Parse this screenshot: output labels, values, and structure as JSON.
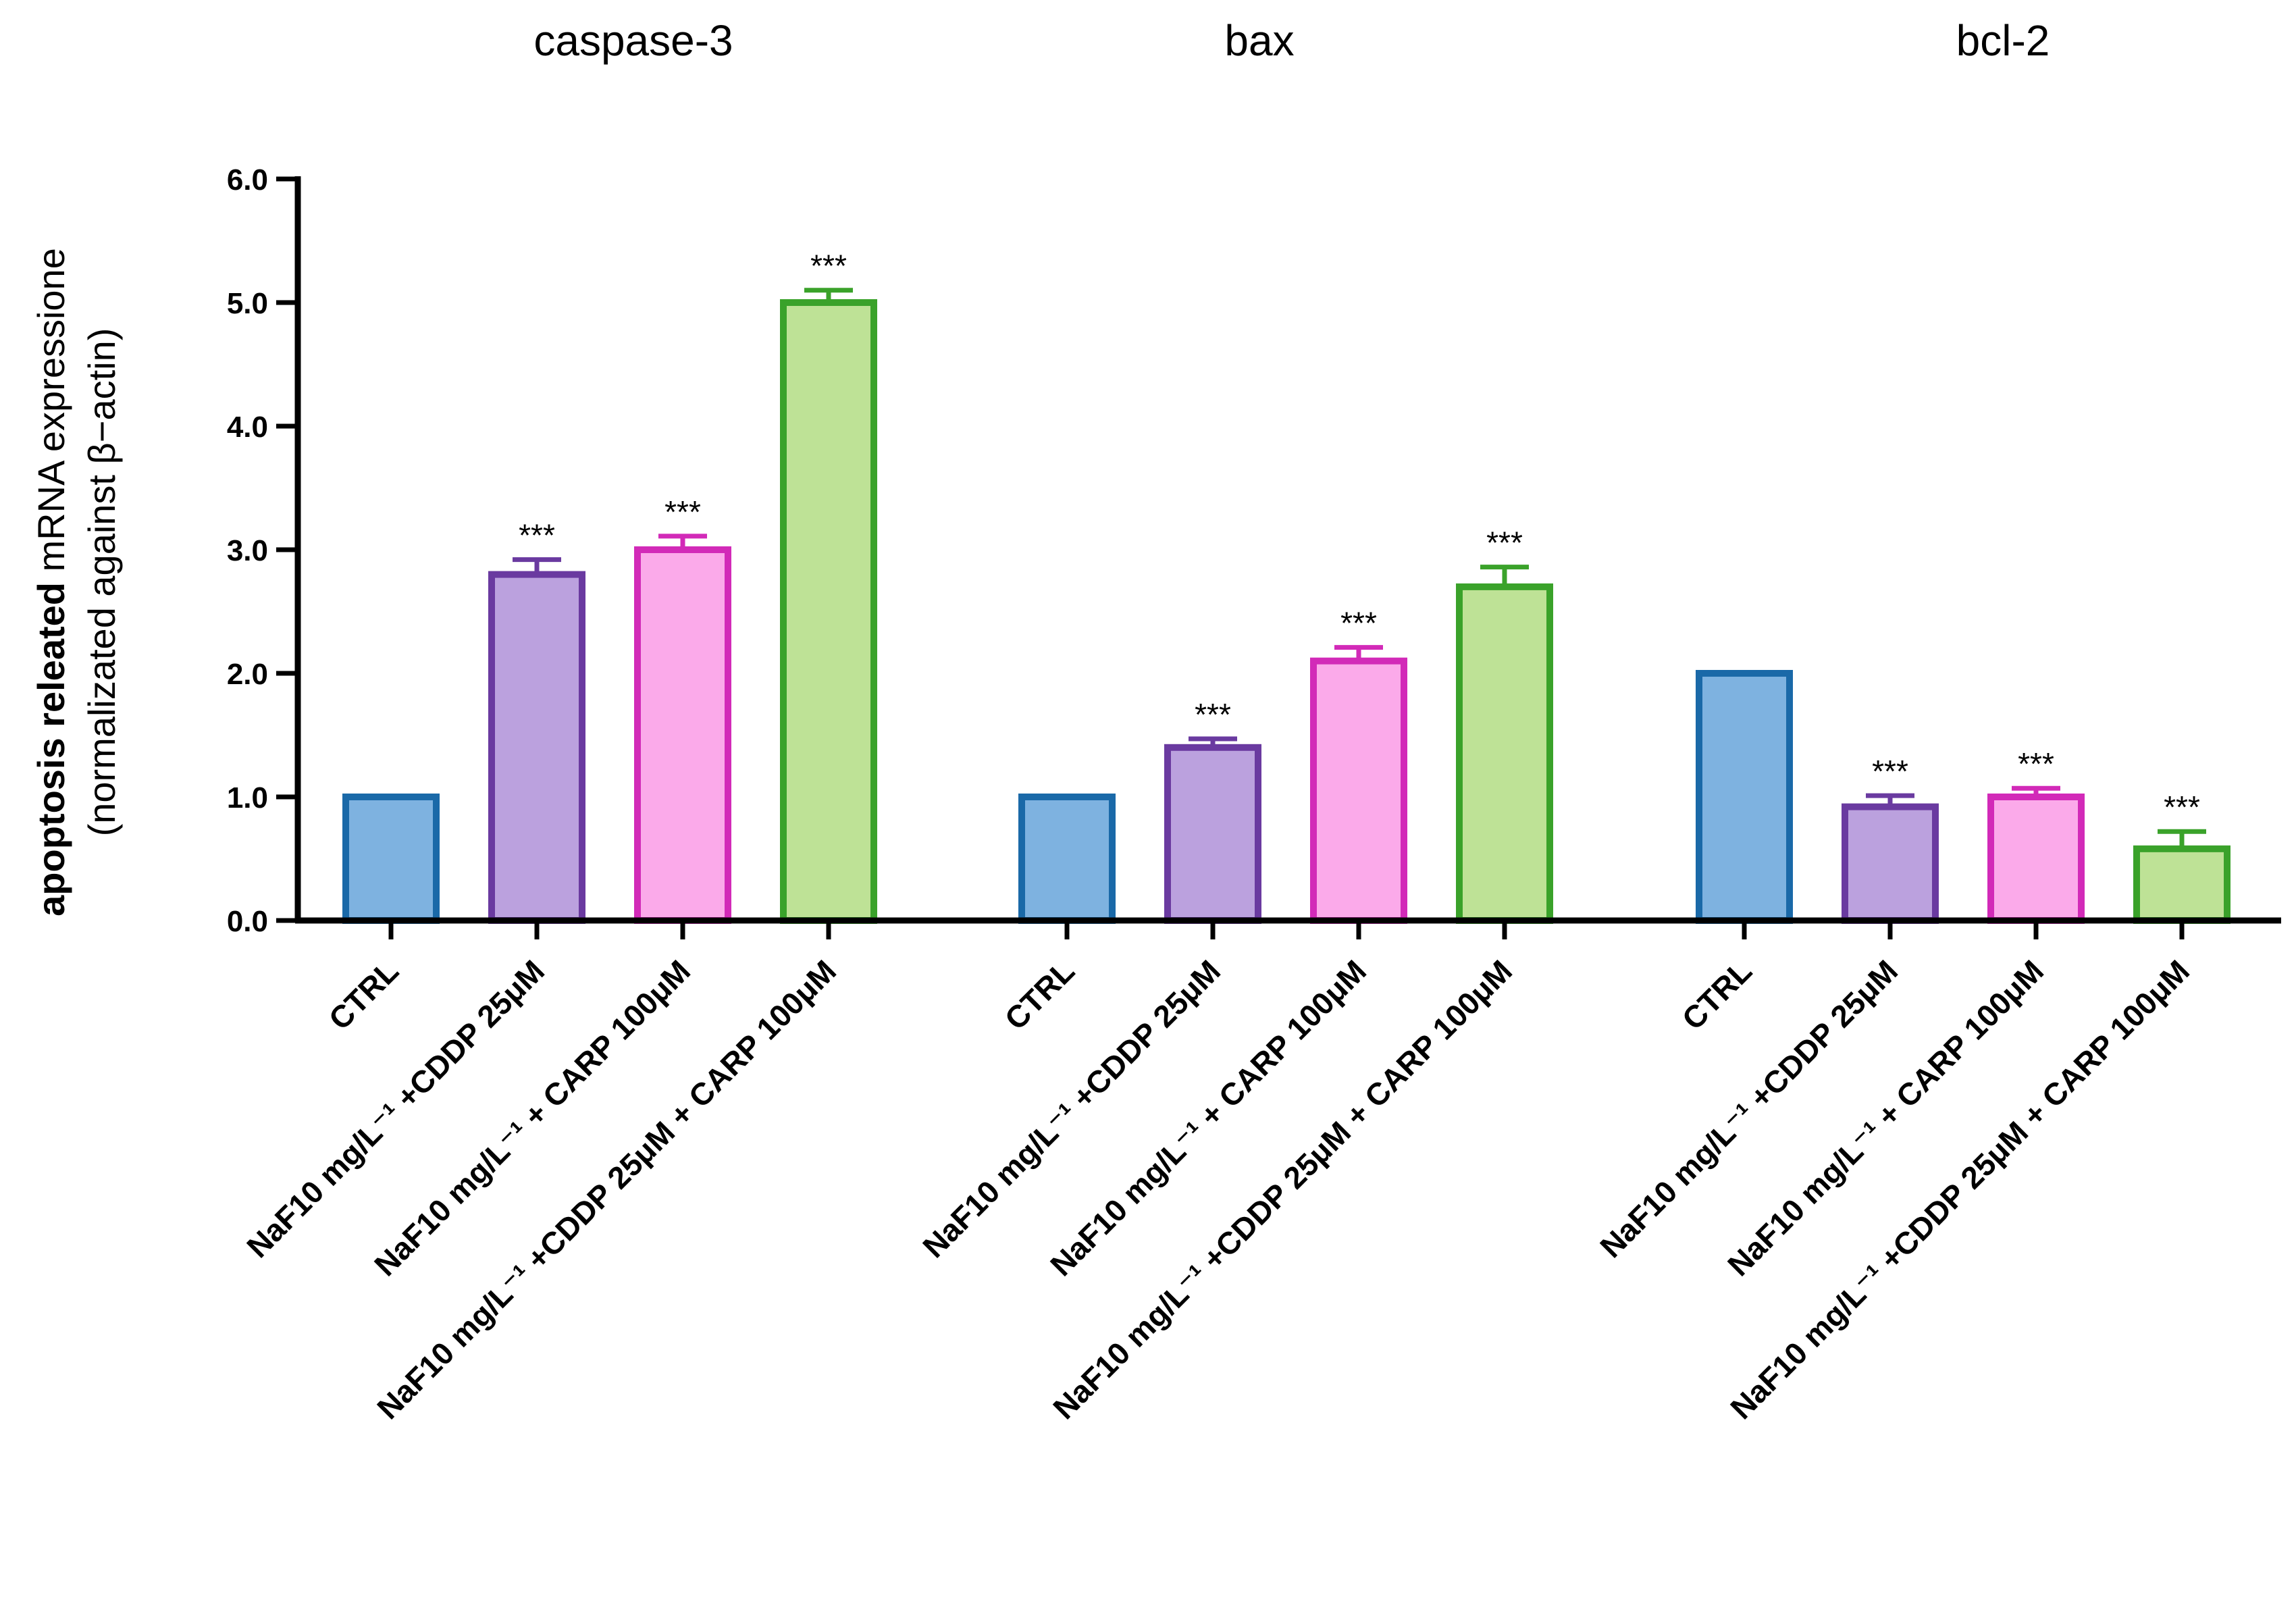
{
  "chart_data": {
    "type": "bar",
    "ylabel": {
      "line1_bold": "apoptosis releated",
      "line1_rest": "mRNA expressione",
      "line2": "(normalizated against β−actin)"
    },
    "ylim": [
      0,
      6
    ],
    "yticks": [
      "0.0",
      "1.0",
      "2.0",
      "3.0",
      "4.0",
      "5.0",
      "6.0"
    ],
    "grid": false,
    "legend": "none",
    "categories": [
      "CTRL",
      "NaF10 mg/L⁻¹ +CDDP 25μM",
      "NaF10 mg/L⁻¹ + CARP 100μM",
      "NaF10 mg/L⁻¹ +CDDP 25μM + CARP 100μM"
    ],
    "colors": {
      "fills": [
        "#7eb2e0",
        "#bba1de",
        "#fbaaea",
        "#bee296"
      ],
      "strokes": [
        "#1a69a8",
        "#6a3aa0",
        "#d22ab8",
        "#3aa22a"
      ]
    },
    "groups": [
      {
        "title": "caspase-3",
        "values": [
          1.0,
          2.8,
          3.0,
          5.0
        ],
        "errors": [
          0.0,
          0.12,
          0.11,
          0.1
        ],
        "significance": [
          "",
          "***",
          "***",
          "***"
        ]
      },
      {
        "title": "bax",
        "values": [
          1.0,
          1.4,
          2.1,
          2.7
        ],
        "errors": [
          0.0,
          0.07,
          0.11,
          0.16
        ],
        "significance": [
          "",
          "***",
          "***",
          "***"
        ]
      },
      {
        "title": "bcl-2",
        "values": [
          2.0,
          0.92,
          1.0,
          0.58
        ],
        "errors": [
          0.0,
          0.09,
          0.07,
          0.14
        ],
        "significance": [
          "",
          "***",
          "***",
          "***"
        ]
      }
    ]
  }
}
